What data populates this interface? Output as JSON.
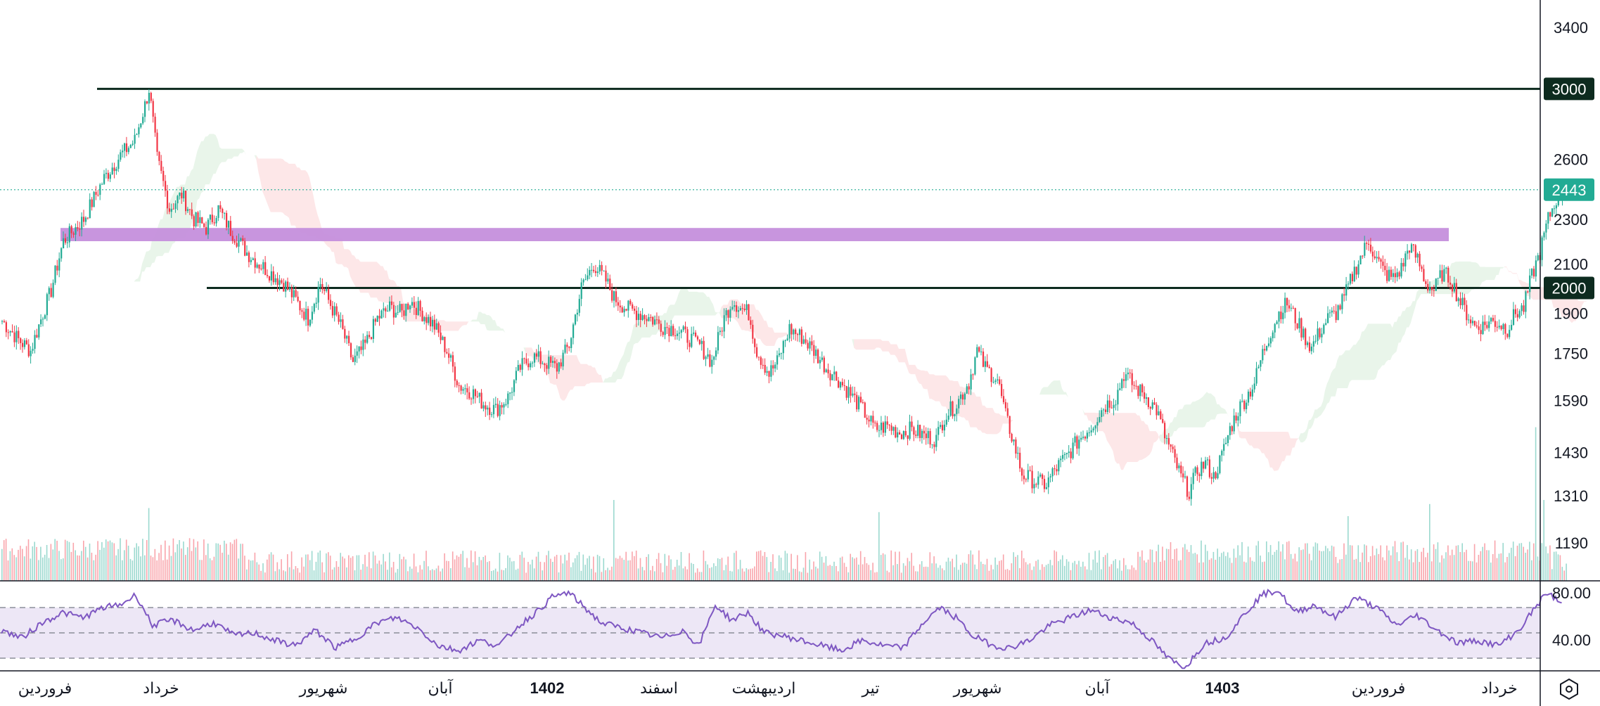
{
  "chart_data": {
    "type": "candlestick",
    "symbol_context": "Persian-calendar daily price chart with Ichimoku cloud, volume and RSI",
    "price_axis": {
      "ticks": [
        3400,
        3000,
        2600,
        2300,
        2100,
        1900,
        1750,
        1590,
        1430,
        1310,
        1190
      ],
      "scale": "log"
    },
    "time_axis": {
      "labels": [
        {
          "text": "فروردین",
          "bold": false
        },
        {
          "text": "خرداد",
          "bold": false
        },
        {
          "text": "شهریور",
          "bold": false
        },
        {
          "text": "آبان",
          "bold": false
        },
        {
          "text": "1402",
          "bold": true
        },
        {
          "text": "اسفند",
          "bold": false
        },
        {
          "text": "اردیبهشت",
          "bold": false
        },
        {
          "text": "تیر",
          "bold": false
        },
        {
          "text": "شهریور",
          "bold": false
        },
        {
          "text": "آبان",
          "bold": false
        },
        {
          "text": "1403",
          "bold": true
        },
        {
          "text": "فروردین",
          "bold": false
        },
        {
          "text": "خرداد",
          "bold": false
        }
      ]
    },
    "horizontal_levels": [
      {
        "value": 3000,
        "label": "3000",
        "color": "#0d2b1f"
      },
      {
        "value": 2000,
        "label": "2000",
        "color": "#0d2b1f"
      }
    ],
    "current_price": {
      "value": 2443,
      "label": "2443",
      "color": "#22ab94"
    },
    "zone": {
      "low": 2200,
      "high": 2260,
      "color": "#c58fdc"
    },
    "price_path": [
      [
        0,
        1870
      ],
      [
        8,
        1800
      ],
      [
        14,
        1760
      ],
      [
        20,
        1900
      ],
      [
        24,
        1990
      ],
      [
        30,
        2200
      ],
      [
        40,
        2300
      ],
      [
        50,
        2500
      ],
      [
        58,
        2620
      ],
      [
        65,
        2700
      ],
      [
        70,
        2900
      ],
      [
        72,
        3000
      ],
      [
        76,
        2600
      ],
      [
        82,
        2350
      ],
      [
        88,
        2420
      ],
      [
        94,
        2300
      ],
      [
        100,
        2260
      ],
      [
        106,
        2350
      ],
      [
        112,
        2250
      ],
      [
        120,
        2150
      ],
      [
        126,
        2100
      ],
      [
        132,
        2060
      ],
      [
        138,
        2020
      ],
      [
        144,
        1950
      ],
      [
        150,
        1880
      ],
      [
        156,
        2020
      ],
      [
        160,
        1950
      ],
      [
        166,
        1850
      ],
      [
        172,
        1720
      ],
      [
        178,
        1780
      ],
      [
        184,
        1880
      ],
      [
        190,
        1920
      ],
      [
        196,
        1900
      ],
      [
        200,
        1950
      ],
      [
        206,
        1900
      ],
      [
        212,
        1850
      ],
      [
        218,
        1760
      ],
      [
        224,
        1640
      ],
      [
        230,
        1620
      ],
      [
        236,
        1580
      ],
      [
        242,
        1560
      ],
      [
        248,
        1600
      ],
      [
        254,
        1700
      ],
      [
        260,
        1740
      ],
      [
        266,
        1720
      ],
      [
        272,
        1700
      ],
      [
        278,
        1780
      ],
      [
        284,
        2000
      ],
      [
        290,
        2100
      ],
      [
        296,
        2030
      ],
      [
        300,
        1960
      ],
      [
        306,
        1920
      ],
      [
        312,
        1900
      ],
      [
        318,
        1880
      ],
      [
        324,
        1850
      ],
      [
        330,
        1840
      ],
      [
        336,
        1810
      ],
      [
        342,
        1780
      ],
      [
        348,
        1720
      ],
      [
        354,
        1880
      ],
      [
        358,
        1950
      ],
      [
        362,
        1920
      ],
      [
        366,
        1900
      ],
      [
        370,
        1760
      ],
      [
        376,
        1680
      ],
      [
        380,
        1720
      ],
      [
        386,
        1840
      ],
      [
        392,
        1810
      ],
      [
        398,
        1760
      ],
      [
        404,
        1700
      ],
      [
        410,
        1660
      ],
      [
        416,
        1610
      ],
      [
        422,
        1560
      ],
      [
        428,
        1500
      ],
      [
        434,
        1510
      ],
      [
        440,
        1490
      ],
      [
        446,
        1500
      ],
      [
        452,
        1480
      ],
      [
        458,
        1470
      ],
      [
        462,
        1540
      ],
      [
        468,
        1580
      ],
      [
        474,
        1650
      ],
      [
        478,
        1760
      ],
      [
        482,
        1700
      ],
      [
        488,
        1660
      ],
      [
        492,
        1540
      ],
      [
        496,
        1460
      ],
      [
        500,
        1370
      ],
      [
        506,
        1350
      ],
      [
        512,
        1340
      ],
      [
        516,
        1380
      ],
      [
        522,
        1420
      ],
      [
        528,
        1470
      ],
      [
        534,
        1510
      ],
      [
        540,
        1570
      ],
      [
        546,
        1600
      ],
      [
        550,
        1680
      ],
      [
        556,
        1630
      ],
      [
        560,
        1610
      ],
      [
        566,
        1560
      ],
      [
        570,
        1480
      ],
      [
        574,
        1420
      ],
      [
        578,
        1360
      ],
      [
        582,
        1320
      ],
      [
        586,
        1380
      ],
      [
        590,
        1400
      ],
      [
        594,
        1360
      ],
      [
        598,
        1420
      ],
      [
        602,
        1500
      ],
      [
        606,
        1560
      ],
      [
        610,
        1600
      ],
      [
        614,
        1650
      ],
      [
        618,
        1750
      ],
      [
        622,
        1830
      ],
      [
        626,
        1900
      ],
      [
        630,
        1940
      ],
      [
        634,
        1880
      ],
      [
        638,
        1820
      ],
      [
        642,
        1770
      ],
      [
        646,
        1830
      ],
      [
        650,
        1880
      ],
      [
        654,
        1900
      ],
      [
        658,
        1960
      ],
      [
        662,
        2050
      ],
      [
        666,
        2130
      ],
      [
        670,
        2200
      ],
      [
        674,
        2120
      ],
      [
        678,
        2060
      ],
      [
        682,
        2040
      ],
      [
        686,
        2080
      ],
      [
        690,
        2180
      ],
      [
        694,
        2120
      ],
      [
        698,
        2020
      ],
      [
        702,
        1990
      ],
      [
        706,
        2060
      ],
      [
        710,
        2040
      ],
      [
        714,
        1960
      ],
      [
        718,
        1900
      ],
      [
        722,
        1850
      ],
      [
        726,
        1850
      ],
      [
        730,
        1870
      ],
      [
        734,
        1860
      ],
      [
        738,
        1840
      ],
      [
        742,
        1900
      ],
      [
        746,
        1920
      ],
      [
        750,
        2050
      ],
      [
        754,
        2150
      ],
      [
        758,
        2300
      ],
      [
        762,
        2400
      ],
      [
        766,
        2443
      ]
    ],
    "volume_spikes": [
      [
        72,
        0.9
      ],
      [
        300,
        1.0
      ],
      [
        430,
        0.85
      ],
      [
        660,
        0.8
      ],
      [
        700,
        0.95
      ],
      [
        752,
        1.9
      ],
      [
        756,
        1.0
      ]
    ],
    "rsi": {
      "ticks": [
        80.0,
        40.0
      ],
      "upper": 70,
      "middle": 50,
      "lower": 30,
      "color": "#7e57c2",
      "band_color": "#ede7f6",
      "path": [
        [
          0,
          52
        ],
        [
          10,
          46
        ],
        [
          20,
          58
        ],
        [
          30,
          66
        ],
        [
          40,
          62
        ],
        [
          50,
          70
        ],
        [
          58,
          72
        ],
        [
          66,
          80
        ],
        [
          74,
          56
        ],
        [
          84,
          60
        ],
        [
          94,
          52
        ],
        [
          104,
          58
        ],
        [
          114,
          48
        ],
        [
          124,
          50
        ],
        [
          134,
          44
        ],
        [
          144,
          40
        ],
        [
          154,
          52
        ],
        [
          164,
          38
        ],
        [
          174,
          46
        ],
        [
          184,
          58
        ],
        [
          194,
          62
        ],
        [
          204,
          54
        ],
        [
          214,
          40
        ],
        [
          224,
          36
        ],
        [
          234,
          44
        ],
        [
          244,
          40
        ],
        [
          254,
          56
        ],
        [
          262,
          66
        ],
        [
          270,
          78
        ],
        [
          278,
          82
        ],
        [
          286,
          70
        ],
        [
          294,
          58
        ],
        [
          304,
          54
        ],
        [
          314,
          50
        ],
        [
          324,
          46
        ],
        [
          334,
          52
        ],
        [
          342,
          40
        ],
        [
          350,
          72
        ],
        [
          358,
          60
        ],
        [
          366,
          66
        ],
        [
          374,
          50
        ],
        [
          382,
          48
        ],
        [
          392,
          44
        ],
        [
          402,
          40
        ],
        [
          412,
          36
        ],
        [
          422,
          44
        ],
        [
          432,
          40
        ],
        [
          442,
          38
        ],
        [
          452,
          58
        ],
        [
          460,
          70
        ],
        [
          468,
          62
        ],
        [
          476,
          48
        ],
        [
          486,
          40
        ],
        [
          494,
          38
        ],
        [
          504,
          44
        ],
        [
          514,
          56
        ],
        [
          524,
          62
        ],
        [
          534,
          68
        ],
        [
          544,
          62
        ],
        [
          554,
          58
        ],
        [
          564,
          44
        ],
        [
          572,
          30
        ],
        [
          580,
          22
        ],
        [
          590,
          42
        ],
        [
          600,
          46
        ],
        [
          610,
          66
        ],
        [
          618,
          80
        ],
        [
          626,
          84
        ],
        [
          634,
          66
        ],
        [
          644,
          72
        ],
        [
          654,
          62
        ],
        [
          664,
          78
        ],
        [
          674,
          70
        ],
        [
          684,
          56
        ],
        [
          694,
          64
        ],
        [
          704,
          52
        ],
        [
          714,
          42
        ],
        [
          724,
          44
        ],
        [
          734,
          40
        ],
        [
          744,
          52
        ],
        [
          752,
          70
        ],
        [
          758,
          82
        ],
        [
          764,
          74
        ]
      ]
    }
  },
  "brand": {
    "icon": "tradingview-logo-icon"
  }
}
